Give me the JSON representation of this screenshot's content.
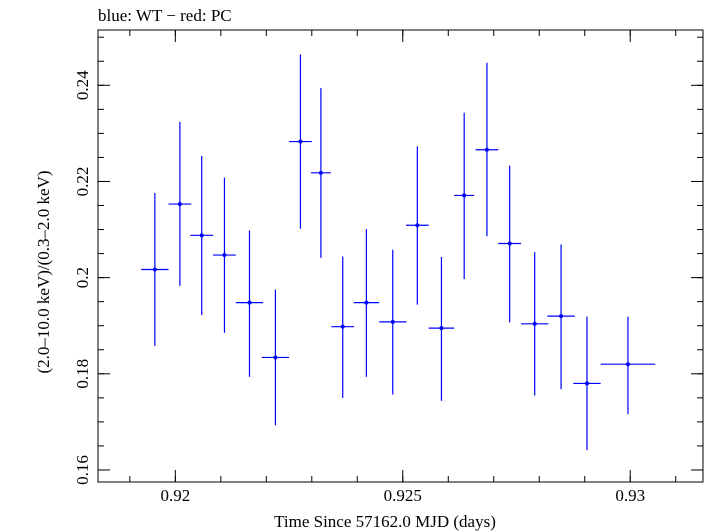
{
  "chart_data": {
    "type": "scatter",
    "title": "blue: WT − red: PC",
    "xlabel": "Time Since 57162.0 MJD (days)",
    "ylabel": "(2.0–10.0 keV)/(0.3–2.0 keV)",
    "xlim": [
      0.9183,
      0.9316
    ],
    "ylim": [
      0.1575,
      0.2515
    ],
    "x_ticks": [
      {
        "value": 0.92,
        "label": "0.92"
      },
      {
        "value": 0.925,
        "label": "0.925"
      },
      {
        "value": 0.93,
        "label": "0.93"
      }
    ],
    "y_ticks": [
      {
        "value": 0.16,
        "label": "0.16"
      },
      {
        "value": 0.18,
        "label": "0.18"
      },
      {
        "value": 0.2,
        "label": "0.2"
      },
      {
        "value": 0.22,
        "label": "0.22"
      },
      {
        "value": 0.24,
        "label": "0.24"
      }
    ],
    "x_minor_step": 0.001,
    "y_minor_step": 0.005,
    "grid": false,
    "series": [
      {
        "color": "#0000ff",
        "points": [
          {
            "x": 0.91955,
            "xerr": 0.0003,
            "y": 0.2017,
            "ylo": 0.1858,
            "yhi": 0.2176
          },
          {
            "x": 0.9201,
            "xerr": 0.00025,
            "y": 0.2153,
            "ylo": 0.1983,
            "yhi": 0.2324
          },
          {
            "x": 0.92058,
            "xerr": 0.00025,
            "y": 0.2088,
            "ylo": 0.1922,
            "yhi": 0.2253
          },
          {
            "x": 0.92108,
            "xerr": 0.00025,
            "y": 0.2047,
            "ylo": 0.1885,
            "yhi": 0.2208
          },
          {
            "x": 0.92163,
            "xerr": 0.0003,
            "y": 0.1948,
            "ylo": 0.1794,
            "yhi": 0.2098
          },
          {
            "x": 0.9222,
            "xerr": 0.0003,
            "y": 0.1834,
            "ylo": 0.1693,
            "yhi": 0.1975
          },
          {
            "x": 0.92275,
            "xerr": 0.00025,
            "y": 0.2283,
            "ylo": 0.2102,
            "yhi": 0.2464
          },
          {
            "x": 0.9232,
            "xerr": 0.00022,
            "y": 0.2218,
            "ylo": 0.2041,
            "yhi": 0.2394
          },
          {
            "x": 0.92368,
            "xerr": 0.00025,
            "y": 0.1898,
            "ylo": 0.175,
            "yhi": 0.2044
          },
          {
            "x": 0.9242,
            "xerr": 0.00028,
            "y": 0.1948,
            "ylo": 0.1794,
            "yhi": 0.2101
          },
          {
            "x": 0.92478,
            "xerr": 0.0003,
            "y": 0.1908,
            "ylo": 0.1757,
            "yhi": 0.2058
          },
          {
            "x": 0.92532,
            "xerr": 0.00025,
            "y": 0.2109,
            "ylo": 0.1944,
            "yhi": 0.2273
          },
          {
            "x": 0.92585,
            "xerr": 0.00028,
            "y": 0.1895,
            "ylo": 0.1744,
            "yhi": 0.2043
          },
          {
            "x": 0.92635,
            "xerr": 0.00022,
            "y": 0.2171,
            "ylo": 0.1997,
            "yhi": 0.2343
          },
          {
            "x": 0.92685,
            "xerr": 0.00025,
            "y": 0.2266,
            "ylo": 0.2086,
            "yhi": 0.2447
          },
          {
            "x": 0.92735,
            "xerr": 0.00025,
            "y": 0.2071,
            "ylo": 0.1907,
            "yhi": 0.2233
          },
          {
            "x": 0.9279,
            "xerr": 0.0003,
            "y": 0.1904,
            "ylo": 0.1755,
            "yhi": 0.2053
          },
          {
            "x": 0.92848,
            "xerr": 0.0003,
            "y": 0.192,
            "ylo": 0.1768,
            "yhi": 0.2069
          },
          {
            "x": 0.92905,
            "xerr": 0.0003,
            "y": 0.178,
            "ylo": 0.1641,
            "yhi": 0.1919
          },
          {
            "x": 0.92995,
            "xerr": 0.0006,
            "y": 0.182,
            "ylo": 0.1716,
            "yhi": 0.1919
          }
        ]
      }
    ]
  }
}
